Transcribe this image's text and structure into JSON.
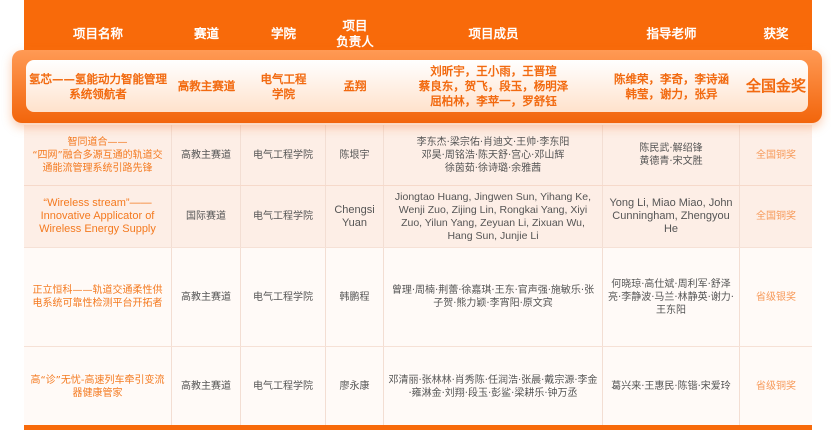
{
  "header": [
    "项目名称",
    "赛道",
    "学院",
    "项目\n负责人",
    "项目成员",
    "指导老师",
    "获奖"
  ],
  "highlight": {
    "name": "氢芯——氢能动力智能管理系统领航者",
    "track": "高教主赛道",
    "college": "电气工程\n学院",
    "leader": "孟翔",
    "members": "刘昕宇，王小雨，王晋瑄\n蔡良东，贺飞，段玉，杨明泽\n屈柏林，李苹一，罗舒钰",
    "teachers": "陈维荣，李奇，李诗涵\n韩莹，谢力，张异",
    "award": "全国金奖"
  },
  "rows": [
    {
      "name": "智同道合——\n“四网”融合多源互通的轨道交通能流管理系统引路先锋",
      "track": "高教主赛道",
      "college": "电气工程学院",
      "leader": "陈垠宇",
      "members": "李东杰·梁宗佑·肖迪文·王帅·李东阳\n邓昊·周铭浩·陈天舒·宫心·邓山辉\n徐茵茹·徐诗璐·余雅茜",
      "teachers": "陈民武·解绍锋\n黄德青·宋文胜",
      "award": "全国铜奖"
    },
    {
      "name": "“Wireless stream”——Innovative Applicator of Wireless Energy Supply",
      "track": "国际赛道",
      "college": "电气工程学院",
      "leader": "Chengsi Yuan",
      "members": "Jiongtao Huang, Jingwen Sun, Yihang Ke, Wenji Zuo, Zijing Lin, Rongkai Yang, Xiyi Zuo, Yilun Yang, Zeyuan Li, Zixuan Wu, Hang Sun, Junjie Li",
      "teachers": "Yong Li, Miao Miao, John Cunningham, Zhengyou He",
      "award": "全国铜奖"
    },
    {
      "name": "正立恒科——轨道交通柔性供电系统可靠性检测平台开拓者",
      "track": "高教主赛道",
      "college": "电气工程学院",
      "leader": "韩鹏程",
      "members": "曾理·周楠·荆蕾·徐嘉琪·王东·官声强·施敏乐·张子贺·熊力颖·李宵阳·原文宾",
      "teachers": "何晓琼·高仕斌·周利军·舒泽亮·李静波·马兰·林静英·谢力·王东阳",
      "award": "省级银奖"
    },
    {
      "name": "高“诊”无忧-高速列车牵引变流器健康管家",
      "track": "高教主赛道",
      "college": "电气工程学院",
      "leader": "廖永康",
      "members": "邓清丽·张林林·肖秀陈·任润浩·张晨·戴宗源·李金·雍淋金·刘翔·段玉·彭鲨·梁耕乐·钟万丞",
      "teachers": "葛兴来·王惠民·陈锴·宋爱玲",
      "award": "省级铜奖"
    }
  ],
  "colors": {
    "accent": "#f86a0a",
    "name_text": "#f47a20",
    "award_text": "#f79a5a"
  }
}
